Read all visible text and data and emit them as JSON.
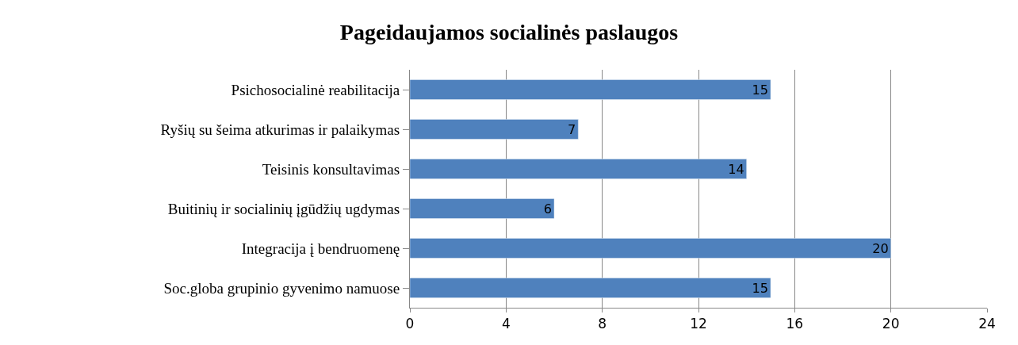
{
  "chart_data": {
    "type": "bar",
    "orientation": "horizontal",
    "title": "Pageidaujamos socialinės paslaugos",
    "categories": [
      "Psichosocialinė reabilitacija",
      "Ryšių su šeima atkurimas ir palaikymas",
      "Teisinis konsultavimas",
      "Buitinių ir socialinių įgūdžių ugdymas",
      "Integracija į bendruomenę",
      "Soc.globa grupinio gyvenimo namuose"
    ],
    "values": [
      15,
      7,
      14,
      6,
      20,
      15
    ],
    "color": "#4f81bd",
    "xlim": [
      0,
      24
    ],
    "xticks": [
      0,
      4,
      8,
      12,
      16,
      20,
      24
    ],
    "grid": "x",
    "data_labels": true,
    "legend": false
  }
}
